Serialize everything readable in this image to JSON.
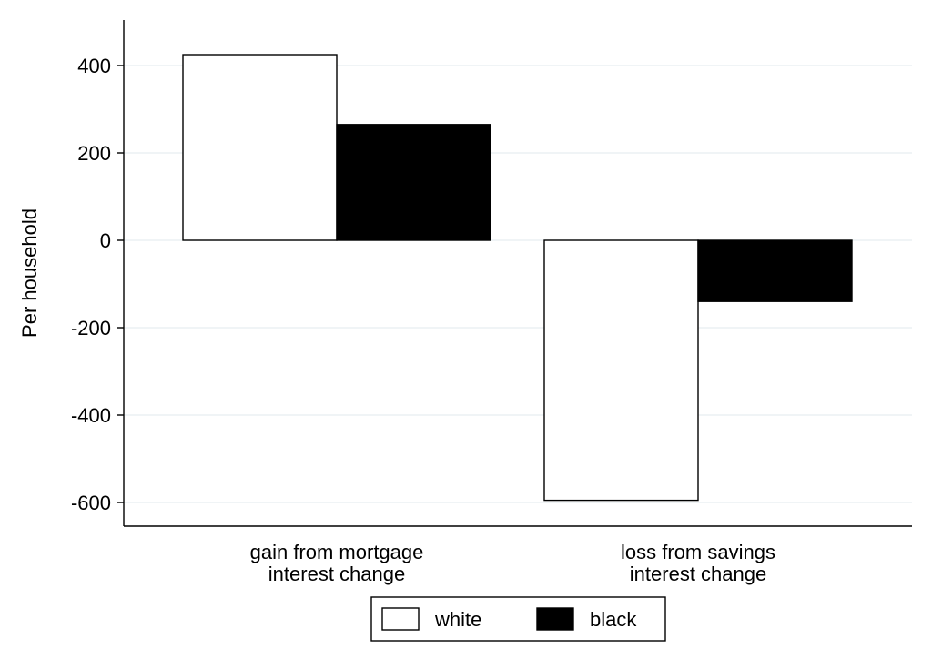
{
  "chart_data": {
    "type": "bar",
    "ylabel": "Per household",
    "xlabel": "",
    "ylim": [
      -650,
      500
    ],
    "yticks": [
      400,
      200,
      0,
      -200,
      -400,
      -600
    ],
    "ytick_labels": [
      "400",
      "200",
      "0",
      "-200",
      "-400",
      "-600"
    ],
    "grid": true,
    "categories": [
      [
        "gain from mortgage",
        "interest change"
      ],
      [
        "loss from savings",
        "interest change"
      ]
    ],
    "series": [
      {
        "name": "white",
        "color": "#ffffff",
        "values": [
          425,
          -595
        ]
      },
      {
        "name": "black",
        "color": "#000000",
        "values": [
          265,
          -140
        ]
      }
    ],
    "legend_position": "bottom"
  }
}
